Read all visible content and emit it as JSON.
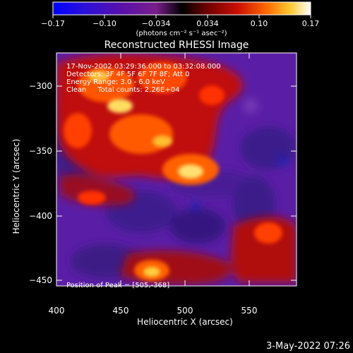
{
  "colorbar": {
    "ticks": [
      "−0.17",
      "−0.10",
      "−0.034",
      "0.034",
      "0.10",
      "0.17"
    ],
    "unit_label": "(photons cm⁻² s⁻¹ asec⁻²)"
  },
  "title": "Reconstructed RHESSI Image",
  "info": {
    "time": "17-Nov-2002 03:29:36.000 to 03:32:08.000",
    "detectors": "Detectors: 3F 4F 5F 6F 7F 8F; Att 0",
    "energy": "Energy Range: 3.0 - 6.0 keV",
    "clean": "Clean     Total counts: 2.26E+04",
    "peak": "Position of Peak = [505,-368]"
  },
  "axes": {
    "xlabel": "Heliocentric X (arcsec)",
    "ylabel": "Heliocentric Y (arcsec)",
    "xticks": [
      "400",
      "450",
      "500",
      "550"
    ],
    "yticks": [
      "−300",
      "−350",
      "−400",
      "−450"
    ]
  },
  "footer_date": "3-May-2022 07:26"
}
